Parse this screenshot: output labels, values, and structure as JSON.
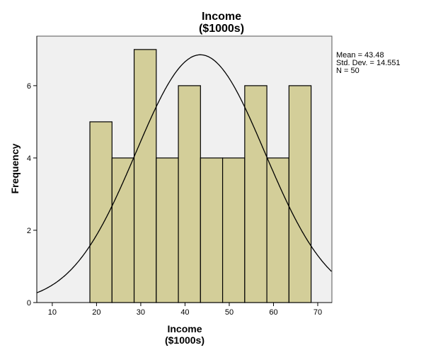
{
  "chart_data": {
    "type": "bar",
    "title": [
      "Income",
      "($1000s)"
    ],
    "xlabel": [
      "Income",
      "($1000s)"
    ],
    "ylabel": "Frequency",
    "bin_edges": [
      18.5,
      23.5,
      28.5,
      33.5,
      38.5,
      43.5,
      48.5,
      53.5,
      58.5,
      63.5,
      68.5
    ],
    "values": [
      5,
      4,
      7,
      4,
      6,
      4,
      4,
      6,
      4,
      6
    ],
    "xlim": [
      6.5,
      73.2
    ],
    "ylim": [
      0,
      7.37
    ],
    "xticks": [
      10,
      20,
      30,
      40,
      50,
      60,
      70
    ],
    "yticks": [
      0,
      2,
      4,
      6
    ],
    "normal_curve": {
      "mean": 43.48,
      "sd": 14.551,
      "n": 50,
      "bin_width": 5
    },
    "stats": [
      "Mean = 43.48",
      "Std. Dev. = 14.551",
      "N = 50"
    ],
    "legend_position": "right",
    "grid": false,
    "colors": {
      "bar": "#d3ce99",
      "plot_bg": "#f0f0f0",
      "edge": "#000000"
    }
  }
}
